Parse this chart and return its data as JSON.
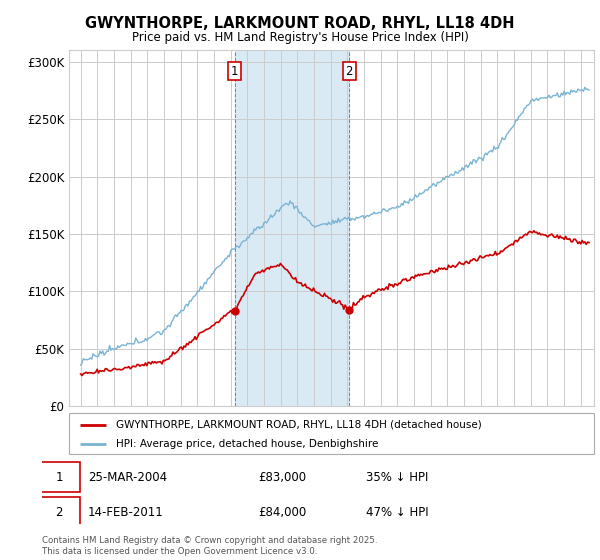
{
  "title": "GWYNTHORPE, LARKMOUNT ROAD, RHYL, LL18 4DH",
  "subtitle": "Price paid vs. HM Land Registry's House Price Index (HPI)",
  "ylim": [
    0,
    310000
  ],
  "yticks": [
    0,
    50000,
    100000,
    150000,
    200000,
    250000,
    300000
  ],
  "ytick_labels": [
    "£0",
    "£50K",
    "£100K",
    "£150K",
    "£200K",
    "£250K",
    "£300K"
  ],
  "hpi_color": "#7ab3d4",
  "price_color": "#cc0000",
  "shading_color": "#daeaf5",
  "marker1_label": "25-MAR-2004",
  "marker1_price": "£83,000",
  "marker1_pct": "35% ↓ HPI",
  "marker2_label": "14-FEB-2011",
  "marker2_price": "£84,000",
  "marker2_pct": "47% ↓ HPI",
  "legend_line1": "GWYNTHORPE, LARKMOUNT ROAD, RHYL, LL18 4DH (detached house)",
  "legend_line2": "HPI: Average price, detached house, Denbighshire",
  "footer": "Contains HM Land Registry data © Crown copyright and database right 2025.\nThis data is licensed under the Open Government Licence v3.0.",
  "background_color": "#ffffff",
  "grid_color": "#cccccc",
  "sale1_year": 2004.23,
  "sale2_year": 2011.12,
  "sale1_price": 83000,
  "sale2_price": 84000
}
